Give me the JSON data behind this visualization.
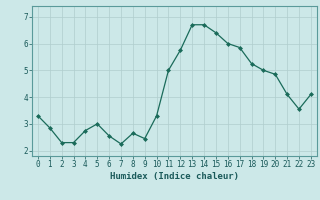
{
  "x": [
    0,
    1,
    2,
    3,
    4,
    5,
    6,
    7,
    8,
    9,
    10,
    11,
    12,
    13,
    14,
    15,
    16,
    17,
    18,
    19,
    20,
    21,
    22,
    23
  ],
  "y": [
    3.3,
    2.85,
    2.3,
    2.3,
    2.75,
    3.0,
    2.55,
    2.25,
    2.65,
    2.45,
    3.3,
    5.0,
    5.75,
    6.7,
    6.7,
    6.4,
    6.0,
    5.85,
    5.25,
    5.0,
    4.85,
    4.1,
    3.55,
    4.1
  ],
  "line_color": "#1a6b5a",
  "marker": "D",
  "marker_size": 2,
  "bg_color": "#cce8e8",
  "grid_color": "#b0cece",
  "xlabel": "Humidex (Indice chaleur)",
  "xlim": [
    -0.5,
    23.5
  ],
  "ylim": [
    1.8,
    7.4
  ],
  "yticks": [
    2,
    3,
    4,
    5,
    6,
    7
  ],
  "xticks": [
    0,
    1,
    2,
    3,
    4,
    5,
    6,
    7,
    8,
    9,
    10,
    11,
    12,
    13,
    14,
    15,
    16,
    17,
    18,
    19,
    20,
    21,
    22,
    23
  ],
  "xtick_labels": [
    "0",
    "1",
    "2",
    "3",
    "4",
    "5",
    "6",
    "7",
    "8",
    "9",
    "10",
    "11",
    "12",
    "13",
    "14",
    "15",
    "16",
    "17",
    "18",
    "19",
    "20",
    "21",
    "22",
    "23"
  ],
  "spine_color": "#5a9a9a",
  "font_color": "#1a5a5a",
  "label_fontsize": 6.5,
  "tick_fontsize": 5.5,
  "linewidth": 0.9
}
